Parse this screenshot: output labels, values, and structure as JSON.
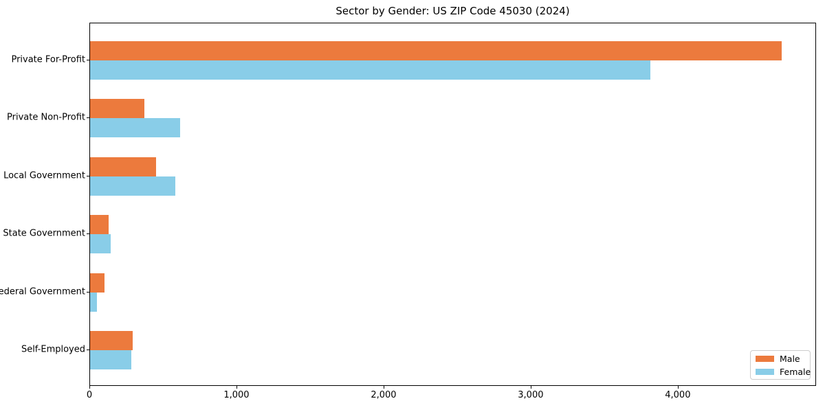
{
  "title": "Sector by Gender: US ZIP Code 45030 (2024)",
  "chart_data": {
    "type": "bar",
    "orientation": "horizontal",
    "title": "Sector by Gender: US ZIP Code 45030 (2024)",
    "categories": [
      "Private For-Profit",
      "Private Non-Profit",
      "Local Government",
      "State Government",
      "Federal Government",
      "Self-Employed"
    ],
    "series": [
      {
        "name": "Male",
        "color": "#ec7a3d",
        "values": [
          4700,
          370,
          450,
          125,
          100,
          290
        ]
      },
      {
        "name": "Female",
        "color": "#89cde8",
        "values": [
          3810,
          610,
          580,
          140,
          45,
          280
        ]
      }
    ],
    "xlabel": "",
    "ylabel": "",
    "xlim": [
      0,
      4940
    ],
    "x_tick_values": [
      0,
      1000,
      2000,
      3000,
      4000
    ],
    "x_tick_labels": [
      "0",
      "1,000",
      "2,000",
      "3,000",
      "4,000"
    ],
    "grid": false,
    "legend_position": "lower right",
    "background_color": "#ffffff",
    "axis_color": "#000000"
  }
}
